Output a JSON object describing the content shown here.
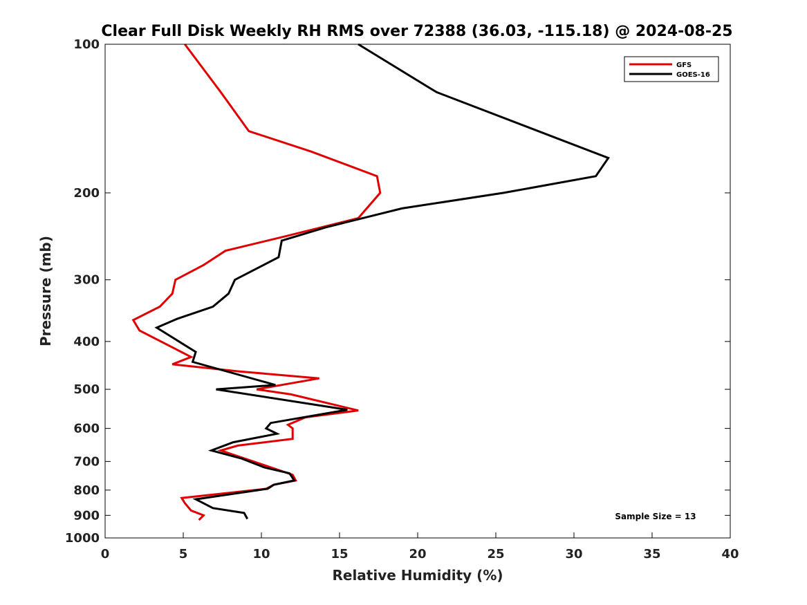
{
  "chart_data": {
    "type": "line",
    "title": "Clear Full Disk Weekly RH RMS over 72388 (36.03, -115.18) @ 2024-08-25",
    "xlabel": "Relative Humidity (%)",
    "ylabel": "Pressure (mb)",
    "xlim": [
      0,
      40
    ],
    "ylim": [
      100,
      1000
    ],
    "y_scale": "log",
    "y_reversed": true,
    "x_ticks": [
      0,
      5,
      10,
      15,
      20,
      25,
      30,
      35,
      40
    ],
    "y_ticks": [
      100,
      200,
      300,
      400,
      500,
      600,
      700,
      800,
      900,
      1000
    ],
    "grid": false,
    "legend_position": "top-right",
    "annotation": "Sample Size = 13",
    "series": [
      {
        "name": "GFS",
        "color": "#e00000",
        "points": [
          [
            5.1,
            100
          ],
          [
            7.4,
            125
          ],
          [
            9.2,
            150
          ],
          [
            13.2,
            165
          ],
          [
            17.4,
            185
          ],
          [
            17.6,
            200
          ],
          [
            16.2,
            225
          ],
          [
            11.5,
            245
          ],
          [
            7.7,
            262
          ],
          [
            6.3,
            280
          ],
          [
            4.5,
            300
          ],
          [
            4.3,
            320
          ],
          [
            3.5,
            340
          ],
          [
            1.8,
            362
          ],
          [
            2.2,
            380
          ],
          [
            5.5,
            430
          ],
          [
            4.3,
            445
          ],
          [
            8.6,
            460
          ],
          [
            13.7,
            475
          ],
          [
            9.7,
            500
          ],
          [
            11.9,
            512
          ],
          [
            16.2,
            552
          ],
          [
            12.8,
            570
          ],
          [
            11.7,
            590
          ],
          [
            12.0,
            600
          ],
          [
            12.0,
            630
          ],
          [
            8.5,
            650
          ],
          [
            7.4,
            665
          ],
          [
            8.9,
            690
          ],
          [
            12.0,
            745
          ],
          [
            12.2,
            765
          ],
          [
            10.8,
            780
          ],
          [
            10.3,
            795
          ],
          [
            4.9,
            830
          ],
          [
            5.1,
            850
          ],
          [
            5.5,
            880
          ],
          [
            6.3,
            900
          ],
          [
            6.0,
            920
          ]
        ]
      },
      {
        "name": "GOES-16",
        "color": "#000000",
        "points": [
          [
            16.2,
            100
          ],
          [
            21.2,
            125
          ],
          [
            32.2,
            170
          ],
          [
            31.4,
            185
          ],
          [
            25.5,
            200
          ],
          [
            19.0,
            215
          ],
          [
            14.1,
            235
          ],
          [
            11.3,
            250
          ],
          [
            11.1,
            270
          ],
          [
            8.3,
            300
          ],
          [
            7.9,
            320
          ],
          [
            6.9,
            340
          ],
          [
            4.6,
            360
          ],
          [
            3.3,
            375
          ],
          [
            5.8,
            420
          ],
          [
            5.6,
            440
          ],
          [
            10.9,
            490
          ],
          [
            7.1,
            500
          ],
          [
            15.5,
            550
          ],
          [
            10.6,
            585
          ],
          [
            10.3,
            600
          ],
          [
            11.0,
            615
          ],
          [
            8.2,
            640
          ],
          [
            6.8,
            665
          ],
          [
            8.7,
            690
          ],
          [
            10.2,
            720
          ],
          [
            11.8,
            740
          ],
          [
            12.1,
            765
          ],
          [
            10.8,
            780
          ],
          [
            10.4,
            795
          ],
          [
            5.8,
            835
          ],
          [
            6.9,
            870
          ],
          [
            8.9,
            890
          ],
          [
            9.1,
            915
          ]
        ]
      }
    ]
  }
}
